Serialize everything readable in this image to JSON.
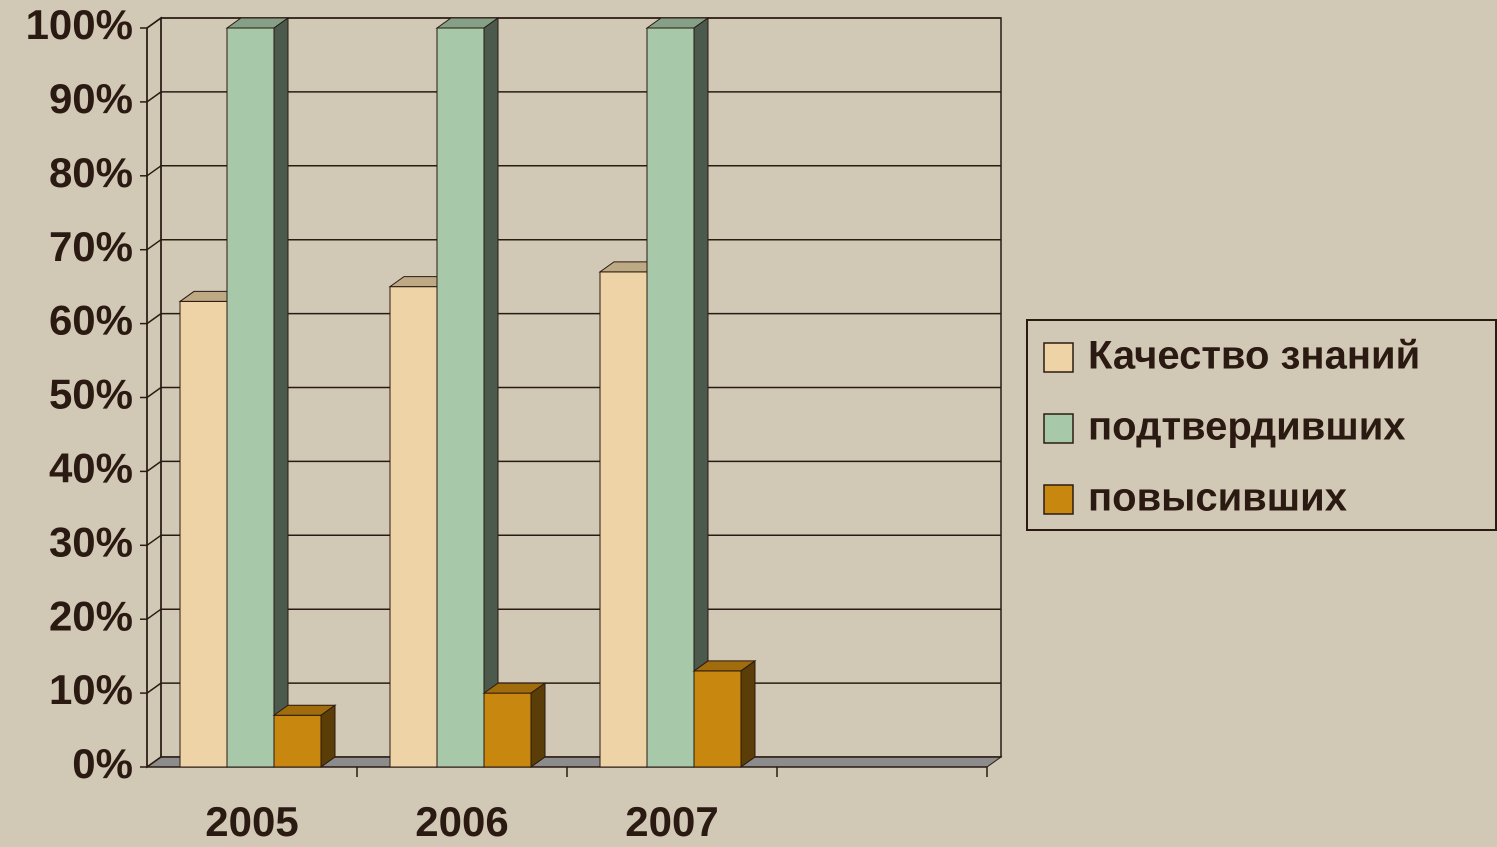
{
  "chart_data": {
    "type": "bar3d",
    "categories": [
      "2005",
      "2006",
      "2007",
      null
    ],
    "series": [
      {
        "name": "Качество знаний",
        "color": "#eed3a6",
        "values": [
          63,
          65,
          67,
          null
        ]
      },
      {
        "name": "подтвердивших",
        "color": "#a7c8a9",
        "values": [
          100,
          100,
          100,
          null
        ]
      },
      {
        "name": "повысивших",
        "color": "#c8870f",
        "values": [
          7,
          10,
          13,
          null
        ]
      }
    ],
    "ylim": [
      0,
      100
    ],
    "yticks": [
      {
        "value": 0,
        "label": "0%"
      },
      {
        "value": 10,
        "label": "10%"
      },
      {
        "value": 20,
        "label": "20%"
      },
      {
        "value": 30,
        "label": "30%"
      },
      {
        "value": 40,
        "label": "40%"
      },
      {
        "value": 50,
        "label": "50%"
      },
      {
        "value": 60,
        "label": "60%"
      },
      {
        "value": 70,
        "label": "70%"
      },
      {
        "value": 80,
        "label": "80%"
      },
      {
        "value": 90,
        "label": "90%"
      },
      {
        "value": 100,
        "label": "100%"
      }
    ],
    "grid": true,
    "legend": "right"
  }
}
